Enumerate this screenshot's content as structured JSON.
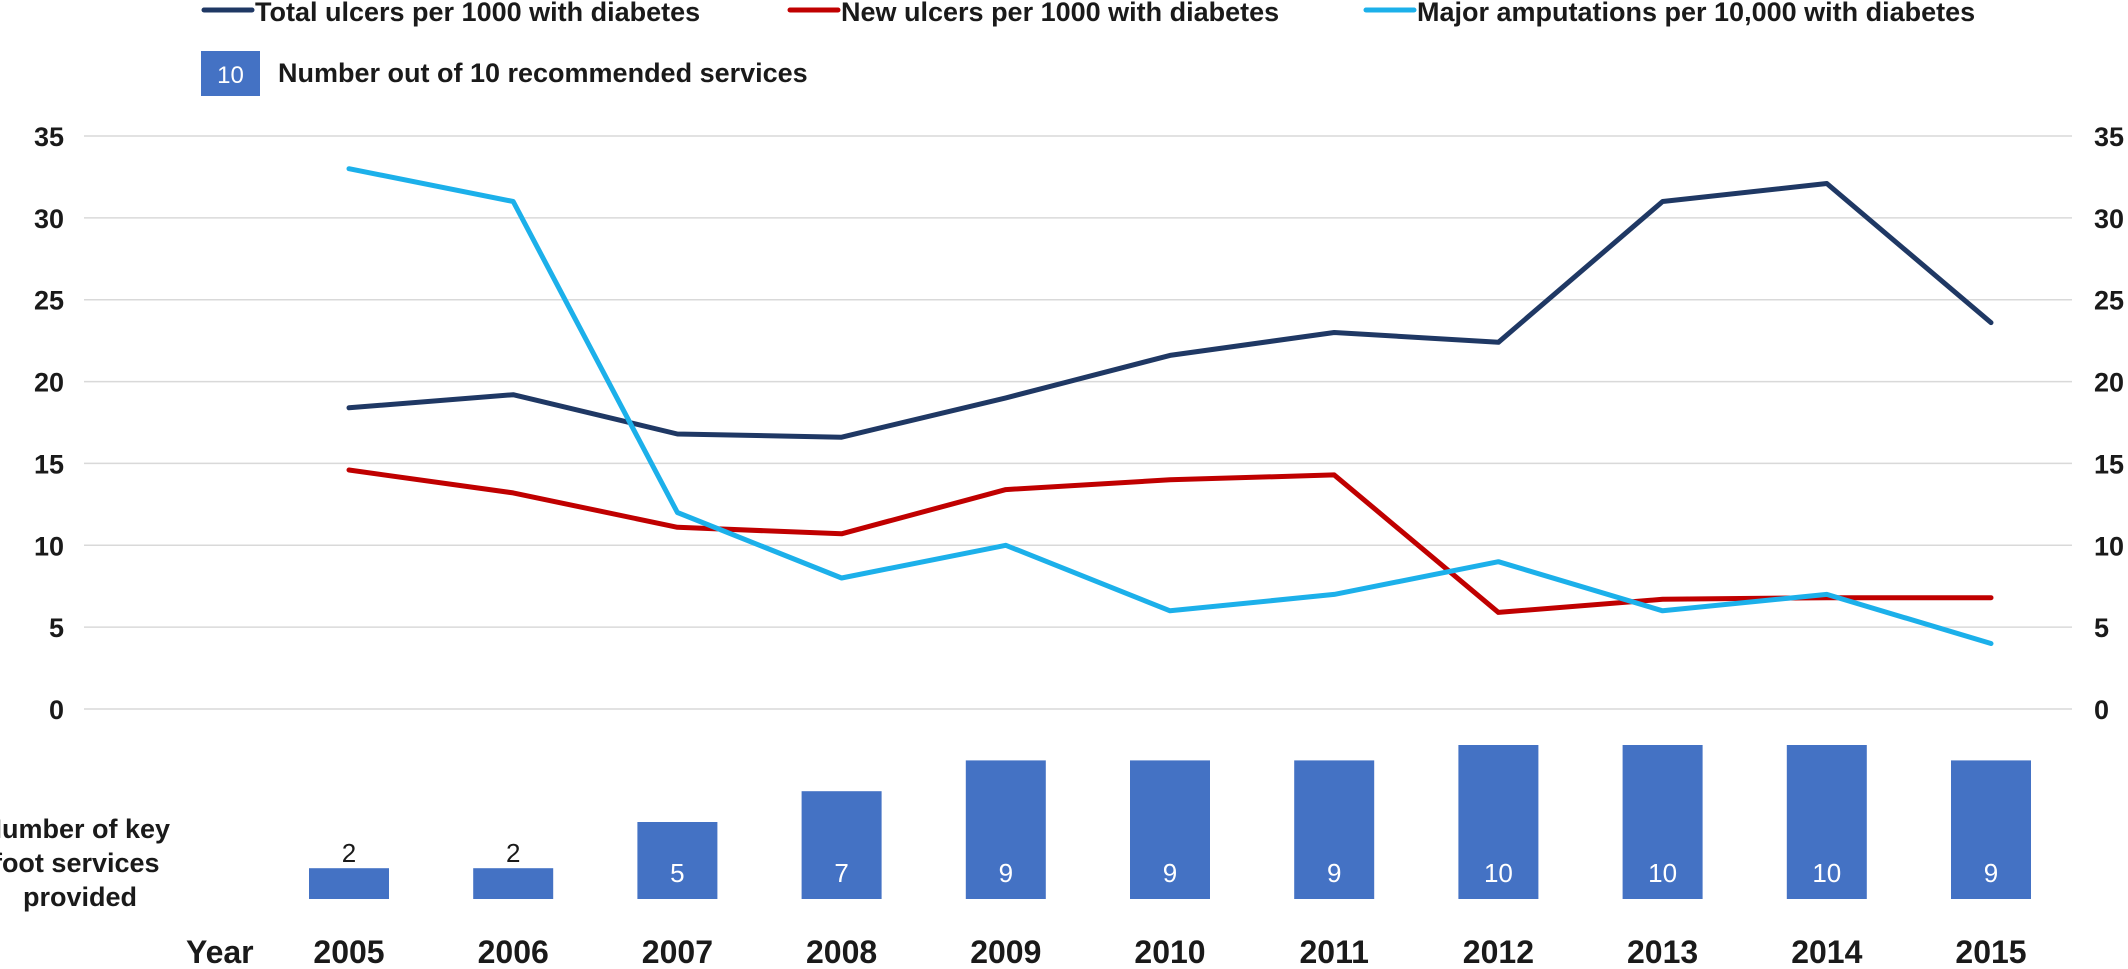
{
  "chart_data": {
    "type": "line",
    "x": [
      "2005",
      "2006",
      "2007",
      "2008",
      "2009",
      "2010",
      "2011",
      "2012",
      "2013",
      "2014",
      "2015"
    ],
    "xlabel": "Year",
    "ylim": [
      0,
      35
    ],
    "yticks": [
      0,
      5,
      10,
      15,
      20,
      25,
      30,
      35
    ],
    "dual_axis": true,
    "grid": true,
    "legend_position": "top",
    "series": [
      {
        "name": "Total ulcers per 1000 with diabetes",
        "color": "#1f3864",
        "values": [
          18.4,
          19.2,
          16.8,
          16.6,
          19.0,
          21.6,
          23.0,
          22.4,
          31.0,
          32.1,
          23.6
        ]
      },
      {
        "name": "New ulcers per 1000 with diabetes",
        "color": "#c00000",
        "values": [
          14.6,
          13.2,
          11.1,
          10.7,
          13.4,
          14.0,
          14.3,
          5.9,
          6.7,
          6.8,
          6.8
        ]
      },
      {
        "name": "Major amputations per 10,000 with diabetes",
        "color": "#1cb0ea",
        "values": [
          33.0,
          31.0,
          12.0,
          8.0,
          10.0,
          6.0,
          7.0,
          9.0,
          6.0,
          7.0,
          4.0
        ]
      }
    ],
    "services": {
      "name": "Number out of 10 recommended services",
      "legend_sample": "10",
      "row_label": [
        "Number of key",
        "foot services",
        "provided"
      ],
      "color": "#4472c4",
      "max": 10,
      "values": [
        2,
        2,
        5,
        7,
        9,
        9,
        9,
        10,
        10,
        10,
        9
      ]
    }
  }
}
